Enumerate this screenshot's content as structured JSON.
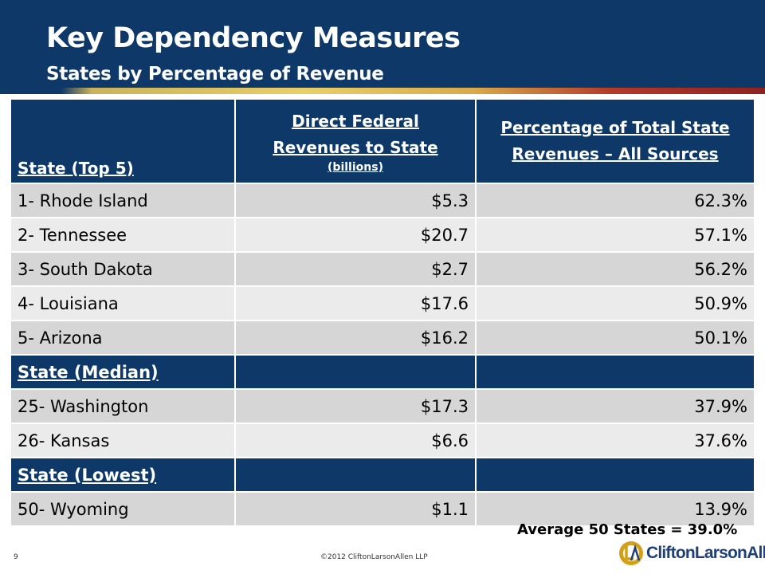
{
  "slide": {
    "title": "Key Dependency Measures",
    "subtitle": "States by Percentage of Revenue",
    "page_number": "9",
    "copyright": "©2012 CliftonLarsonAllen LLP",
    "logo_text": "CliftonLarsonAllen",
    "average_note": "Average 50 States  = 39.0%"
  },
  "table": {
    "headers": {
      "col1": "State (Top 5)",
      "col2_line1": "Direct Federal",
      "col2_line2": "Revenues to State",
      "col2_small": "(billions)",
      "col3_line1": "Percentage of Total State",
      "col3_line2": "Revenues – All Sources"
    },
    "top5": [
      {
        "state": "1- Rhode Island",
        "federal": "$5.3",
        "pct": "62.3%"
      },
      {
        "state": "2- Tennessee",
        "federal": "$20.7",
        "pct": "57.1%"
      },
      {
        "state": "3- South Dakota",
        "federal": "$2.7",
        "pct": "56.2%"
      },
      {
        "state": "4- Louisiana",
        "federal": "$17.6",
        "pct": "50.9%"
      },
      {
        "state": "5- Arizona",
        "federal": "$16.2",
        "pct": "50.1%"
      }
    ],
    "median_label": "State (Median)",
    "median": [
      {
        "state": "25- Washington",
        "federal": "$17.3",
        "pct": "37.9%"
      },
      {
        "state": "26- Kansas",
        "federal": "$6.6",
        "pct": "37.6%"
      }
    ],
    "lowest_label": "State (Lowest)",
    "lowest": [
      {
        "state": "50- Wyoming",
        "federal": "$1.1",
        "pct": "13.9%"
      }
    ]
  },
  "colors": {
    "navy": "#0d3868",
    "row_dark": "#d6d6d6",
    "row_light": "#ebebeb",
    "logo_gold": "#d4a017",
    "logo_blue": "#1f3f77"
  }
}
